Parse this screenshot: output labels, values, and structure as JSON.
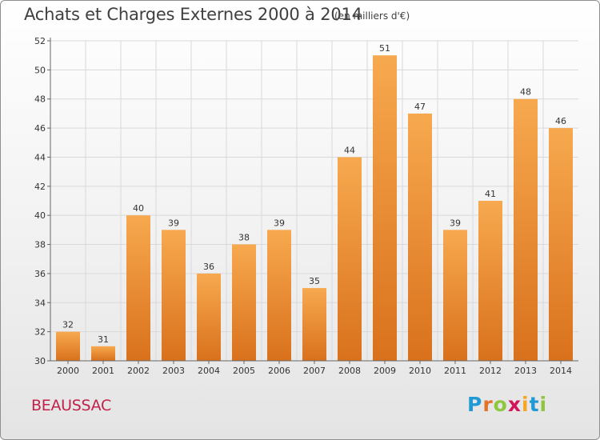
{
  "header": {
    "title": "Achats et Charges Externes 2000 à 2014",
    "unit": "(en milliers d'€)"
  },
  "commune": "BEAUSSAC",
  "logo": {
    "text": "Proxiti",
    "letter_colors": [
      "#1f9ad6",
      "#e2732b",
      "#8dc63f",
      "#d4145a",
      "#f5a623",
      "#1f9ad6",
      "#8dc63f"
    ]
  },
  "colors": {
    "bar_light": "#f7a94f",
    "bar_dark": "#d9711c",
    "grid": "#d9d9d9"
  },
  "chart_data": {
    "type": "bar",
    "title": "Achats et Charges Externes 2000 à 2014",
    "subtitle": "(en milliers d'€)",
    "xlabel": "",
    "ylabel": "",
    "categories": [
      "2000",
      "2001",
      "2002",
      "2003",
      "2004",
      "2005",
      "2006",
      "2007",
      "2008",
      "2009",
      "2010",
      "2011",
      "2012",
      "2013",
      "2014"
    ],
    "values": [
      32,
      31,
      40,
      39,
      36,
      38,
      39,
      35,
      44,
      51,
      47,
      39,
      41,
      48,
      46
    ],
    "ylim": [
      30,
      52
    ],
    "yticks": [
      30,
      32,
      34,
      36,
      38,
      40,
      42,
      44,
      46,
      48,
      50,
      52
    ],
    "grid": true,
    "data_labels": true
  }
}
